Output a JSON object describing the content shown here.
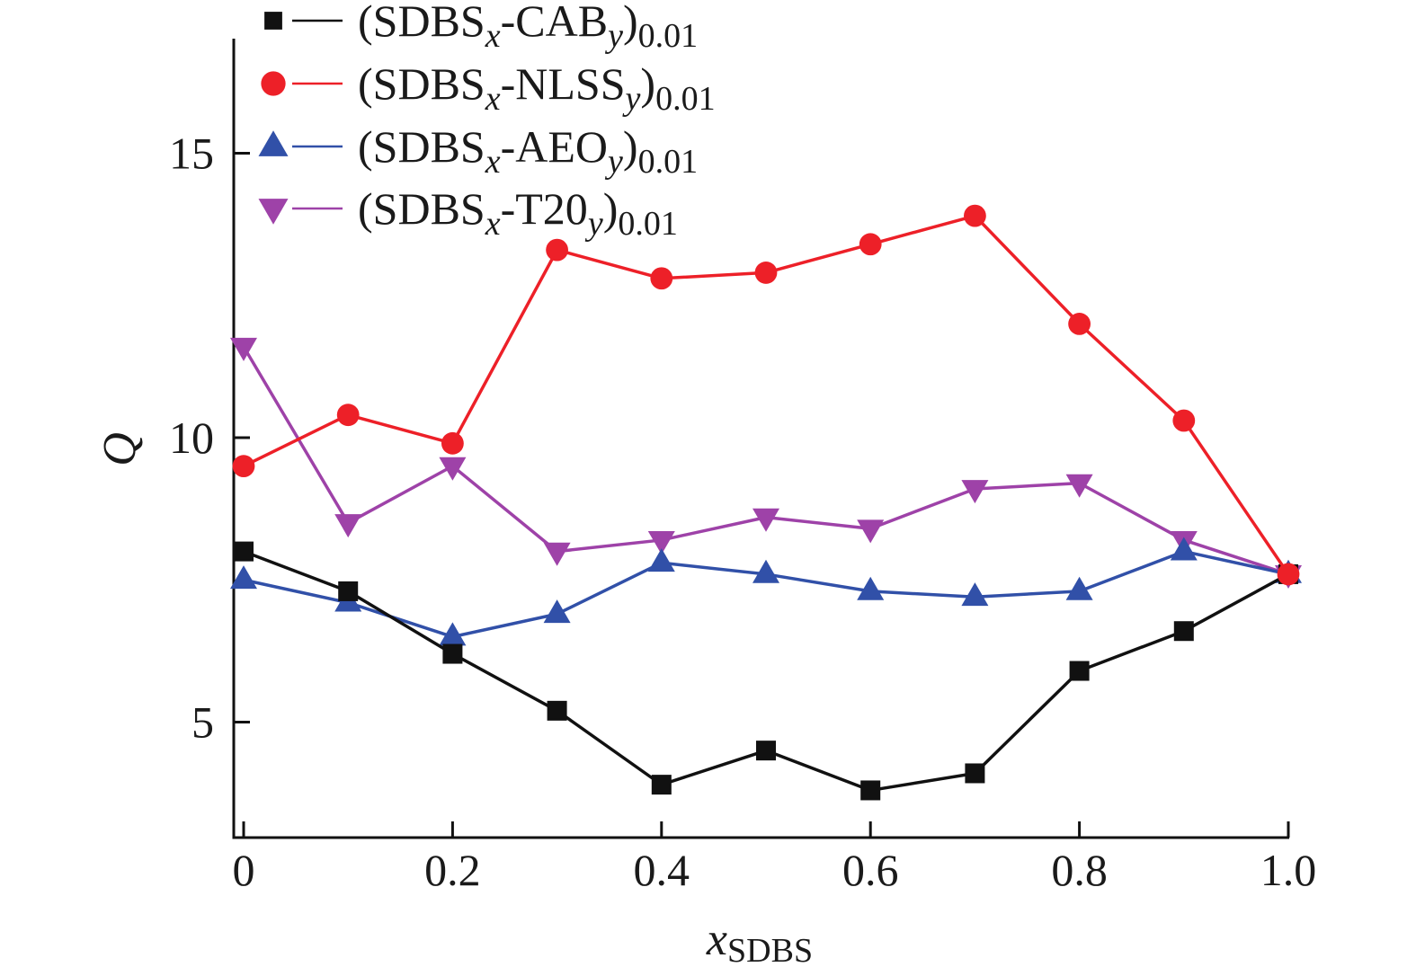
{
  "chart_data": {
    "type": "line",
    "title": "",
    "xlabel": {
      "main": "x",
      "sub": "SDBS"
    },
    "ylabel": "Q",
    "xlim": [
      0,
      1.0
    ],
    "ylim": [
      3.0,
      17.0
    ],
    "grid": false,
    "legend_position": "top-left",
    "x": [
      0,
      0.1,
      0.2,
      0.3,
      0.4,
      0.5,
      0.6,
      0.7,
      0.8,
      0.9,
      1.0
    ],
    "xticks": [
      0,
      0.2,
      0.4,
      0.6,
      0.8,
      1.0
    ],
    "xtick_labels": [
      "0",
      "0.2",
      "0.4",
      "0.6",
      "0.8",
      "1.0"
    ],
    "yticks": [
      5,
      10,
      15
    ],
    "ytick_labels": [
      "5",
      "10",
      "15"
    ],
    "series": [
      {
        "name": "(SDBSx-CABy)0.01",
        "label_parts": {
          "open": "(SDBS",
          "sub1": "x",
          "mid": "-CAB",
          "sub2": "y",
          "close": ")",
          "sub3": "0.01"
        },
        "marker": "square",
        "color": "#111111",
        "values": [
          8.0,
          7.3,
          6.2,
          5.2,
          3.9,
          4.5,
          3.8,
          4.1,
          5.9,
          6.6,
          7.6
        ]
      },
      {
        "name": "(SDBSx-NLSSy)0.01",
        "label_parts": {
          "open": "(SDBS",
          "sub1": "x",
          "mid": "-NLSS",
          "sub2": "y",
          "close": ")",
          "sub3": "0.01"
        },
        "marker": "circle",
        "color": "#ED2028",
        "values": [
          9.5,
          10.4,
          9.9,
          13.3,
          12.8,
          12.9,
          13.4,
          13.9,
          12.0,
          10.3,
          7.6
        ]
      },
      {
        "name": "(SDBSx-AEOy)0.01",
        "label_parts": {
          "open": "(SDBS",
          "sub1": "x",
          "mid": "-AEO",
          "sub2": "y",
          "close": ")",
          "sub3": "0.01"
        },
        "marker": "triangle-up",
        "color": "#3150A8",
        "values": [
          7.5,
          7.1,
          6.5,
          6.9,
          7.8,
          7.6,
          7.3,
          7.2,
          7.3,
          8.0,
          7.6
        ]
      },
      {
        "name": "(SDBSx-T20y)0.01",
        "label_parts": {
          "open": "(SDBS",
          "sub1": "x",
          "mid": "-T20",
          "sub2": "y",
          "close": ")",
          "sub3": "0.01"
        },
        "marker": "triangle-down",
        "color": "#9E42A8",
        "values": [
          11.6,
          8.5,
          9.5,
          8.0,
          8.2,
          8.6,
          8.4,
          9.1,
          9.2,
          8.2,
          7.6
        ]
      }
    ]
  }
}
